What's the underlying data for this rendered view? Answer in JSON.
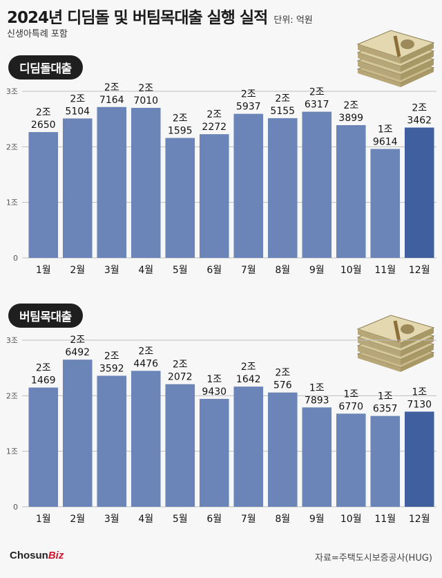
{
  "header": {
    "title": "2024년 디딤돌 및 버팀목대출 실행 실적",
    "unit": "단위: 억원",
    "subtitle": "신생아특례 포함"
  },
  "footer": {
    "logo_main": "Chosun",
    "logo_accent": "Biz",
    "source": "자료=주택도시보증공사(HUG)"
  },
  "colors": {
    "bar": "#6b85b8",
    "bar_highlight": "#3f5f9f",
    "grid": "#bdbdbd"
  },
  "chart_data": [
    {
      "type": "bar",
      "title": "디딤돌대출",
      "categories": [
        "1월",
        "2월",
        "3월",
        "4월",
        "5월",
        "6월",
        "7월",
        "8월",
        "9월",
        "10월",
        "11월",
        "12월"
      ],
      "values": [
        22650,
        25104,
        27164,
        27010,
        21595,
        22272,
        25937,
        25155,
        26317,
        23899,
        19614,
        23462
      ],
      "label_top": [
        "2조",
        "2조",
        "2조",
        "2조",
        "2조",
        "2조",
        "2조",
        "2조",
        "2조",
        "2조",
        "1조",
        "2조"
      ],
      "label_bottom": [
        "2650",
        "5104",
        "7164",
        "7010",
        "1595",
        "2272",
        "5937",
        "5155",
        "6317",
        "3899",
        "9614",
        "3462"
      ],
      "yticks": [
        "0",
        "1조",
        "2조",
        "3조"
      ],
      "ylim": [
        0,
        30000
      ],
      "highlight_index": 11
    },
    {
      "type": "bar",
      "title": "버팀목대출",
      "categories": [
        "1월",
        "2월",
        "3월",
        "4월",
        "5월",
        "6월",
        "7월",
        "8월",
        "9월",
        "10월",
        "11월",
        "12월"
      ],
      "values": [
        21469,
        26492,
        23592,
        24476,
        22072,
        19430,
        21642,
        20576,
        17893,
        16770,
        16357,
        17130
      ],
      "label_top": [
        "2조",
        "2조",
        "2조",
        "2조",
        "2조",
        "1조",
        "2조",
        "2조",
        "1조",
        "1조",
        "1조",
        "1조"
      ],
      "label_bottom": [
        "1469",
        "6492",
        "3592",
        "4476",
        "2072",
        "9430",
        "1642",
        "576",
        "7893",
        "6770",
        "6357",
        "7130"
      ],
      "yticks": [
        "0",
        "1조",
        "2조",
        "3조"
      ],
      "ylim": [
        0,
        30000
      ],
      "highlight_index": 11
    }
  ]
}
